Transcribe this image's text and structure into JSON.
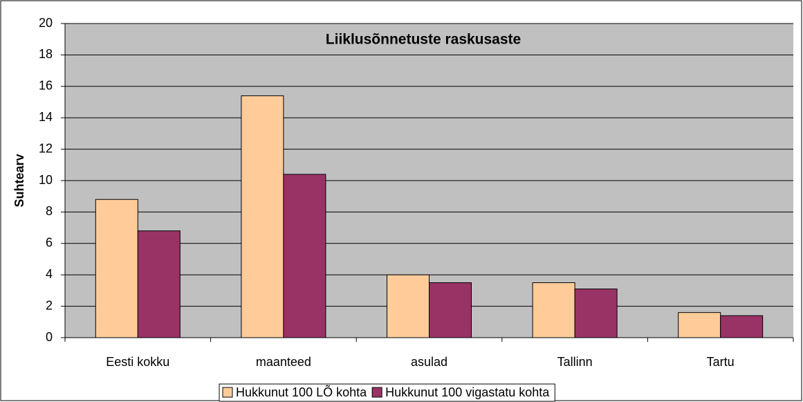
{
  "chart_data": {
    "type": "bar",
    "title": "Liiklusõnnetuste raskusaste",
    "y_label": "Suhtearv",
    "categories": [
      "Eesti kokku",
      "maanteed",
      "asulad",
      "Tallinn",
      "Tartu"
    ],
    "series": [
      {
        "name": "Hukkunut 100 LÕ kohta",
        "color": "#FFCC99",
        "values": [
          8.8,
          15.4,
          4.0,
          3.5,
          1.6
        ]
      },
      {
        "name": "Hukkunut 100 vigastatu kohta",
        "color": "#993366",
        "values": [
          6.8,
          10.4,
          3.5,
          3.1,
          1.4
        ]
      }
    ],
    "ylim": [
      0,
      20
    ],
    "yticks": [
      0,
      2,
      4,
      6,
      8,
      10,
      12,
      14,
      16,
      18,
      20
    ],
    "grid": true,
    "legend": "bottom"
  }
}
